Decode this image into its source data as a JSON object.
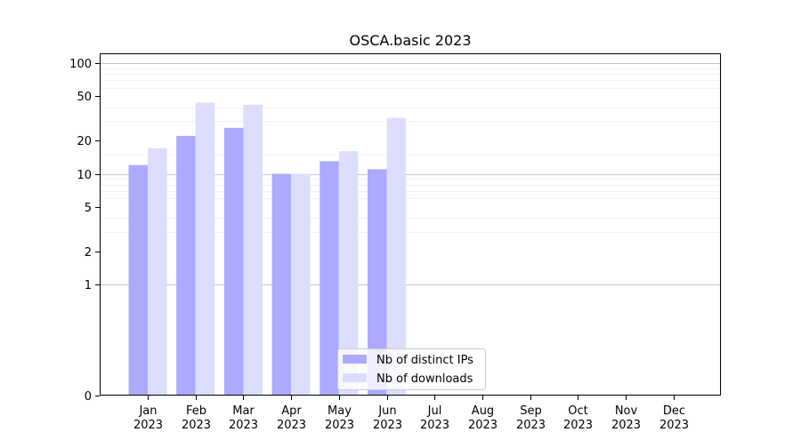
{
  "chart_data": {
    "type": "bar",
    "title": "OSCA.basic 2023",
    "xlabel": "",
    "ylabel": "",
    "categories": [
      [
        "Jan",
        "2023"
      ],
      [
        "Feb",
        "2023"
      ],
      [
        "Mar",
        "2023"
      ],
      [
        "Apr",
        "2023"
      ],
      [
        "May",
        "2023"
      ],
      [
        "Jun",
        "2023"
      ],
      [
        "Jul",
        "2023"
      ],
      [
        "Aug",
        "2023"
      ],
      [
        "Sep",
        "2023"
      ],
      [
        "Oct",
        "2023"
      ],
      [
        "Nov",
        "2023"
      ],
      [
        "Dec",
        "2023"
      ]
    ],
    "series": [
      {
        "name": "Nb of distinct IPs",
        "color": "#aaaaff",
        "values": [
          12,
          22,
          26,
          10,
          13,
          11,
          0,
          0,
          0,
          0,
          0,
          0
        ]
      },
      {
        "name": "Nb of downloads",
        "color": "#ddddff",
        "values": [
          17,
          44,
          42,
          10,
          16,
          32,
          0,
          0,
          0,
          0,
          0,
          0
        ]
      }
    ],
    "yscale": "symlog",
    "ylim": [
      0,
      120
    ],
    "yticks": [
      0,
      1,
      2,
      5,
      10,
      20,
      50,
      100
    ],
    "ytick_labels": [
      "0",
      "1",
      "2",
      "5",
      "10",
      "20",
      "50",
      "100"
    ],
    "grid": true,
    "legend_position": "bottom-center"
  }
}
